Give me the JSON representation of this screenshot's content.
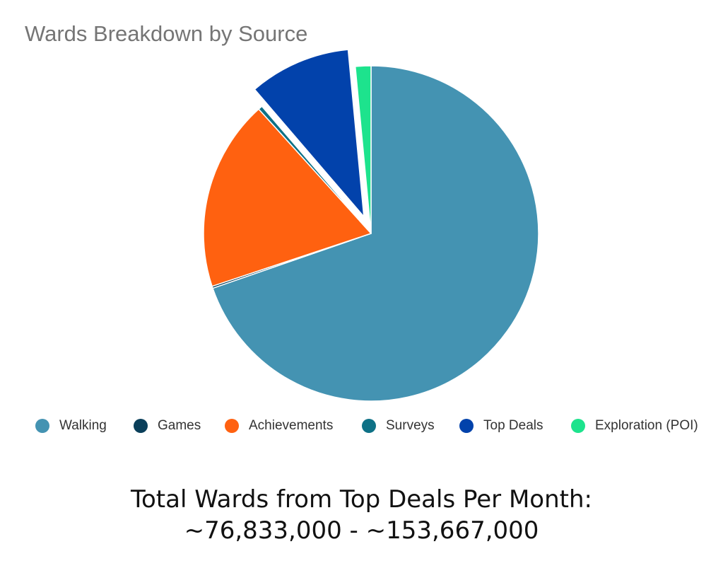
{
  "chart_data": {
    "type": "pie",
    "title": "Wards Breakdown by Source",
    "slices": [
      {
        "name": "Walking",
        "value": 69.7,
        "color": "#4493b2",
        "exploded": false
      },
      {
        "name": "Games",
        "value": 0.2,
        "color": "#0a3f5a",
        "exploded": false
      },
      {
        "name": "Achievements",
        "value": 18.4,
        "color": "#ff6110",
        "exploded": false
      },
      {
        "name": "Surveys",
        "value": 0.4,
        "color": "#0e7186",
        "exploded": false
      },
      {
        "name": "Top Deals",
        "value": 9.8,
        "color": "#0242ab",
        "exploded": true
      },
      {
        "name": "Exploration (POI)",
        "value": 1.5,
        "color": "#1de38d",
        "exploded": false
      }
    ],
    "legend": "bottom"
  },
  "caption": {
    "line1": "Total Wards from Top Deals Per Month:",
    "line2": "~76,833,000 - ~153,667,000"
  }
}
